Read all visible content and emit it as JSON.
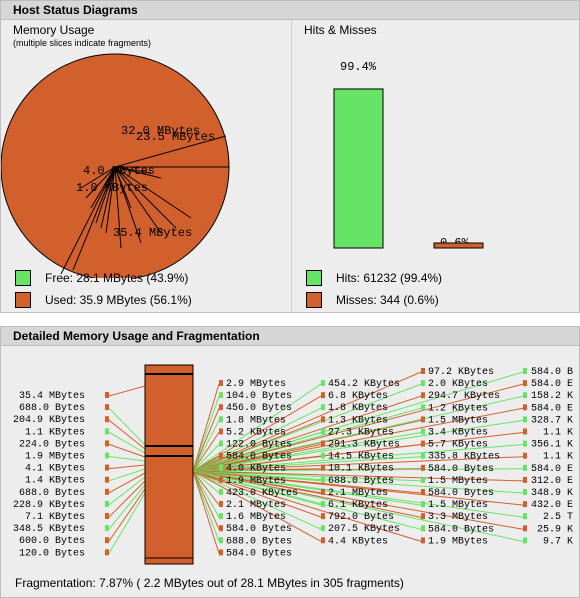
{
  "header": {
    "status_title": "Host Status Diagrams",
    "detail_title": "Detailed Memory Usage and Fragmentation"
  },
  "memory": {
    "title": "Memory Usage",
    "note": "(multiple slices indicate fragments)",
    "pie_labels": [
      "32.0 MBytes",
      "23.5 MBytes",
      "4.0 MBytes",
      "1.0 MBytes",
      "35.4 MBytes"
    ],
    "legend": {
      "free": "Free: 28.1 MBytes (43.9%)",
      "used": "Used: 35.9 MBytes (56.1%)"
    },
    "colors": {
      "free": "#66e466",
      "used": "#d2602c"
    }
  },
  "hits": {
    "title": "Hits & Misses",
    "hits_pct_label": "99.4%",
    "misses_pct_label": "0.6%",
    "hits_fraction": 0.994,
    "misses_fraction": 0.006,
    "legend": {
      "hits": "Hits: 61232 (99.4%)",
      "misses": "Misses: 344 (0.6%)"
    }
  },
  "fragmentation": {
    "col1": [
      "35.4 MBytes",
      "688.0 Bytes",
      "204.9 KBytes",
      "1.1 KBytes",
      "224.0 Bytes",
      "1.9 MBytes",
      "4.1 KBytes",
      "1.4 KBytes",
      "688.0 Bytes",
      "228.9 KBytes",
      "7.1 KBytes",
      "348.5 KBytes",
      "600.0 Bytes",
      "120.0 Bytes"
    ],
    "col2": [
      "2.9 MBytes",
      "104.0 Bytes",
      "456.0 Bytes",
      "1.8 MBytes",
      "5.2 KBytes",
      "122.0 Bytes",
      "584.0 Bytes",
      "4.0 KBytes",
      "1.9 MBytes",
      "423.0 KBytes",
      "2.1 MBytes",
      "1.6 MBytes",
      "584.0 Bytes",
      "688.0 Bytes",
      "584.0 Bytes"
    ],
    "col3": [
      "454.2 KBytes",
      "6.8 KBytes",
      "1.8 KBytes",
      "1.3 KBytes",
      "27.3 KBytes",
      "291.3 KBytes",
      "14.5 KBytes",
      "10.1 KBytes",
      "688.0 Bytes",
      "2.1 MBytes",
      "6.1 KBytes",
      "792.0 Bytes",
      "207.5 KBytes",
      "4.4 KBytes"
    ],
    "col4": [
      "97.2 KBytes",
      "2.0 KBytes",
      "294.7 KBytes",
      "1.2 KBytes",
      "1.5 MBytes",
      "3.4 KBytes",
      "5.7 KBytes",
      "335.8 KBytes",
      "584.0 Bytes",
      "1.5 MBytes",
      "584.0 Bytes",
      "1.5 MBytes",
      "3.3 MBytes",
      "584.0 Bytes",
      "1.9 MBytes"
    ],
    "col5": [
      "584.0",
      "584.0",
      "158.2",
      "584.0",
      "328.7",
      "1.1",
      "356.1",
      "1.1",
      "584.0",
      "312.0",
      "348.9",
      "432.0",
      "2.5",
      "25.9",
      "9.7"
    ],
    "col5_units": [
      "B",
      "E",
      "K",
      "E",
      "K",
      "K",
      "K",
      "K",
      "E",
      "E",
      "K",
      "E",
      "T",
      "K",
      "K"
    ],
    "summary": "Fragmentation: 7.87% ( 2.2 MBytes out of 28.1 MBytes in 305 fragments)"
  }
}
